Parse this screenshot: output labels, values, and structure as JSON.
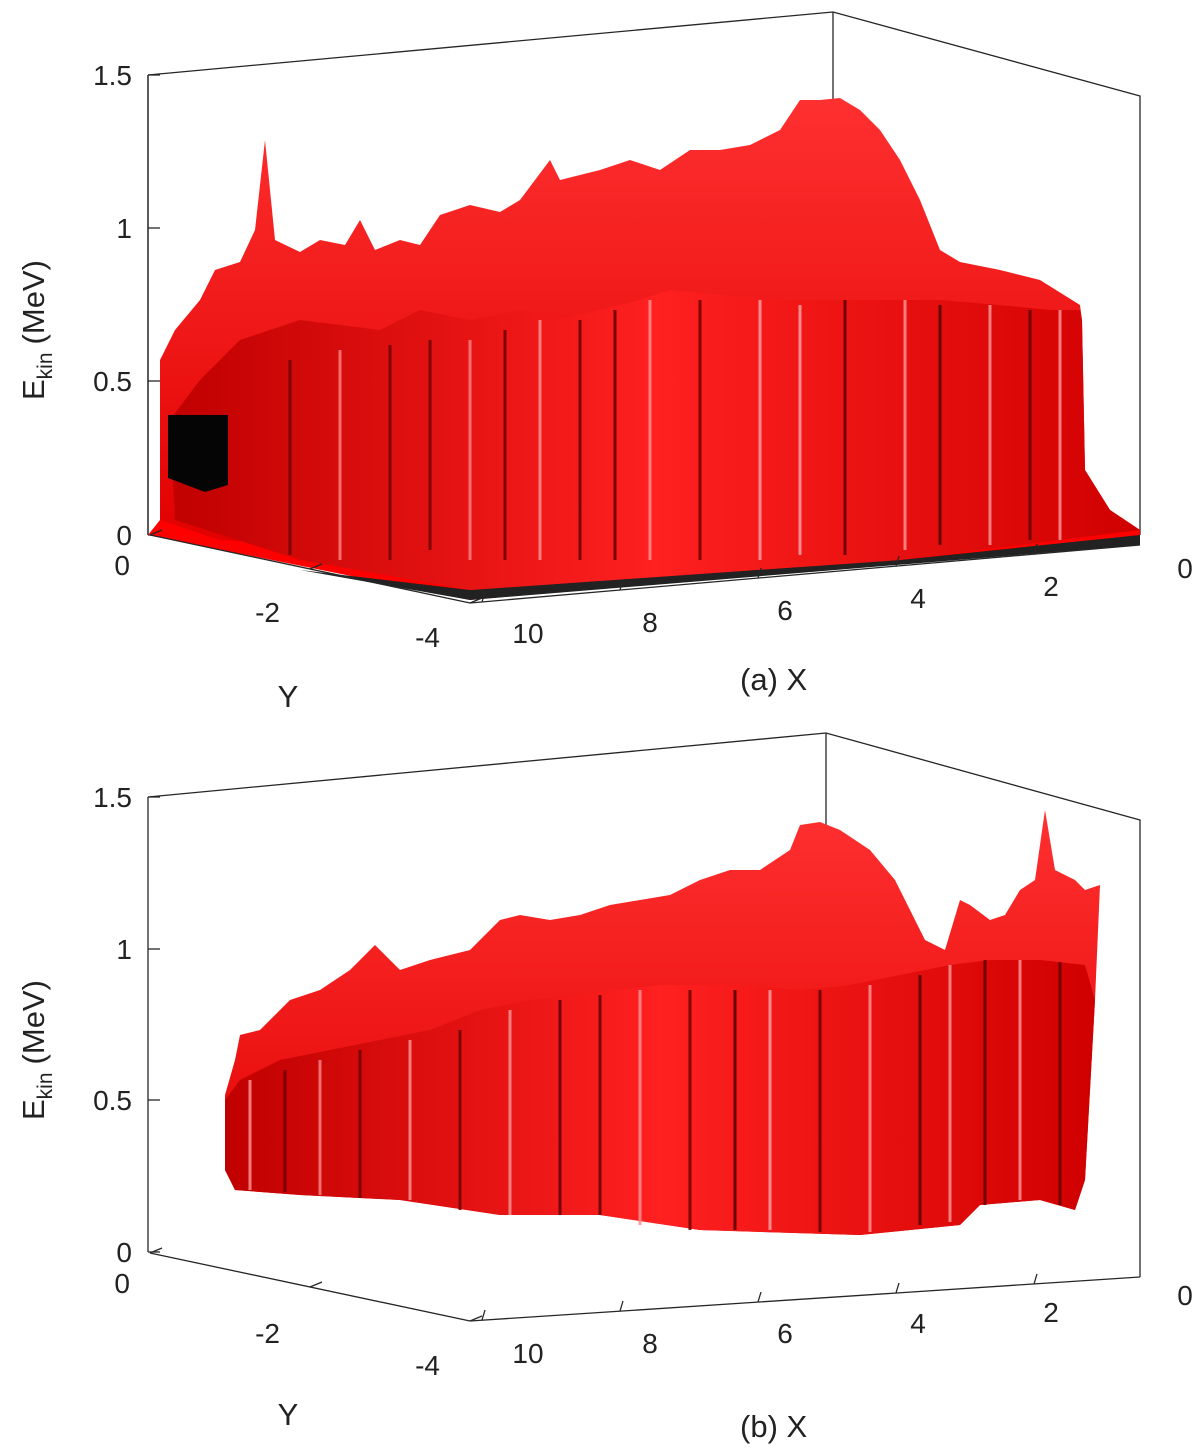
{
  "chart_data": [
    {
      "type": "surface",
      "panel_label": "(a)",
      "xlabel": "X",
      "ylabel": "Y",
      "zlabel": "E",
      "zlabel_sub": "kin",
      "zlabel_unit": "(MeV)",
      "x_ticks": [
        "10",
        "8",
        "6",
        "4",
        "2",
        "0"
      ],
      "y_ticks": [
        "0",
        "-2",
        "-4"
      ],
      "z_ticks": [
        "0",
        "0.5",
        "1",
        "1.5"
      ],
      "xlim": [
        0,
        10
      ],
      "ylim": [
        -4,
        0
      ],
      "zlim": [
        0,
        1.5
      ],
      "grid": false,
      "surface_color": "#ff0000",
      "surface_shadow_color": "#000000",
      "surface_profile": {
        "x": [
          10,
          9.5,
          9,
          8.5,
          8,
          7.5,
          7,
          6.5,
          6,
          5.5,
          5,
          4.5,
          4,
          3.5,
          3,
          2.5,
          2,
          1.5,
          1,
          0.5
        ],
        "max_energy": [
          0.9,
          1.05,
          0.9,
          0.92,
          1.0,
          1.02,
          1.05,
          1.1,
          1.15,
          1.18,
          1.2,
          1.3,
          1.38,
          1.25,
          1.05,
          0.9,
          0.85,
          0.82,
          0.8,
          0.8
        ],
        "front_energy": [
          0.5,
          0.62,
          0.6,
          0.7,
          0.72,
          0.75,
          0.82,
          0.85,
          0.8,
          0.88,
          0.85,
          0.82,
          0.8,
          0.8,
          0.78,
          0.78,
          0.75,
          0.73,
          0.72,
          0.7
        ]
      }
    },
    {
      "type": "surface",
      "panel_label": "(b)",
      "xlabel": "X",
      "ylabel": "Y",
      "zlabel": "E",
      "zlabel_sub": "kin",
      "zlabel_unit": "(MeV)",
      "x_ticks": [
        "10",
        "8",
        "6",
        "4",
        "2",
        "0"
      ],
      "y_ticks": [
        "0",
        "-2",
        "-4"
      ],
      "z_ticks": [
        "0",
        "0.5",
        "1",
        "1.5"
      ],
      "xlim": [
        0,
        10
      ],
      "ylim": [
        -4,
        0
      ],
      "zlim": [
        0,
        1.5
      ],
      "grid": false,
      "surface_color": "#ff0000",
      "surface_shadow_color": "#000000",
      "surface_profile": {
        "x": [
          10,
          9.5,
          9,
          8.5,
          8,
          7.5,
          7,
          6.5,
          6,
          5.5,
          5,
          4.5,
          4,
          3.5,
          3,
          2.5,
          2,
          1.5,
          1,
          0.5
        ],
        "max_energy": [
          0.6,
          0.72,
          0.8,
          0.85,
          0.9,
          0.98,
          1.05,
          1.1,
          1.12,
          1.15,
          1.2,
          1.3,
          1.38,
          1.2,
          1.0,
          0.95,
          1.05,
          1.2,
          1.1,
          1.0
        ],
        "front_energy": [
          0.4,
          0.45,
          0.5,
          0.55,
          0.6,
          0.65,
          0.72,
          0.78,
          0.8,
          0.85,
          0.85,
          0.82,
          0.8,
          0.8,
          0.78,
          0.76,
          0.74,
          0.72,
          0.7,
          0.7
        ],
        "base_energy": [
          0.3,
          0.26,
          0.24,
          0.22,
          0.2,
          0.18,
          0.17,
          0.16,
          0.15,
          0.14,
          0.13,
          0.14,
          0.15,
          0.18,
          0.2,
          0.22,
          0.24,
          0.26,
          0.27,
          0.27
        ]
      }
    }
  ]
}
